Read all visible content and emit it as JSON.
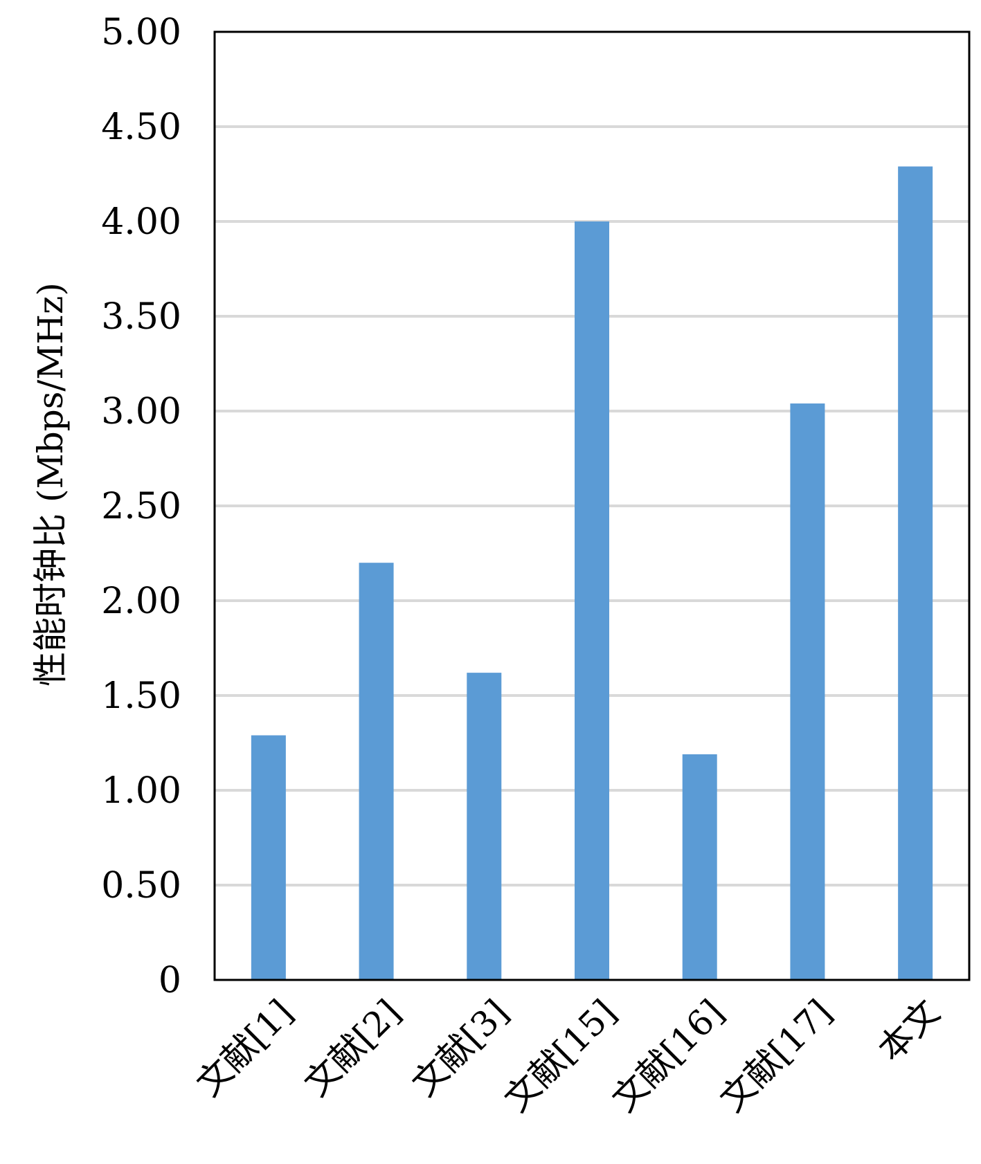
{
  "chart_data": {
    "type": "bar",
    "title": "",
    "xlabel": "",
    "ylabel": "性能时钟比 (Mbps/MHz)",
    "categories": [
      "文献[1]",
      "文献[2]",
      "文献[3]",
      "文献[15]",
      "文献[16]",
      "文献[17]",
      "本文"
    ],
    "values": [
      1.29,
      2.2,
      1.62,
      4.0,
      1.19,
      3.04,
      4.29
    ],
    "ylim": [
      0,
      5
    ],
    "yticks": [
      0,
      0.5,
      1,
      1.5,
      2,
      2.5,
      3,
      3.5,
      4,
      4.5,
      5
    ],
    "ytick_labels": [
      "0",
      "0.50",
      "1.00",
      "1.50",
      "2.00",
      "2.50",
      "3.00",
      "3.50",
      "4.00",
      "4.50",
      "5.00"
    ],
    "grid": true,
    "legend": "none",
    "colors": {
      "bar": "#5B9BD5",
      "grid": "#D9D9D9",
      "axis": "#000000"
    }
  }
}
